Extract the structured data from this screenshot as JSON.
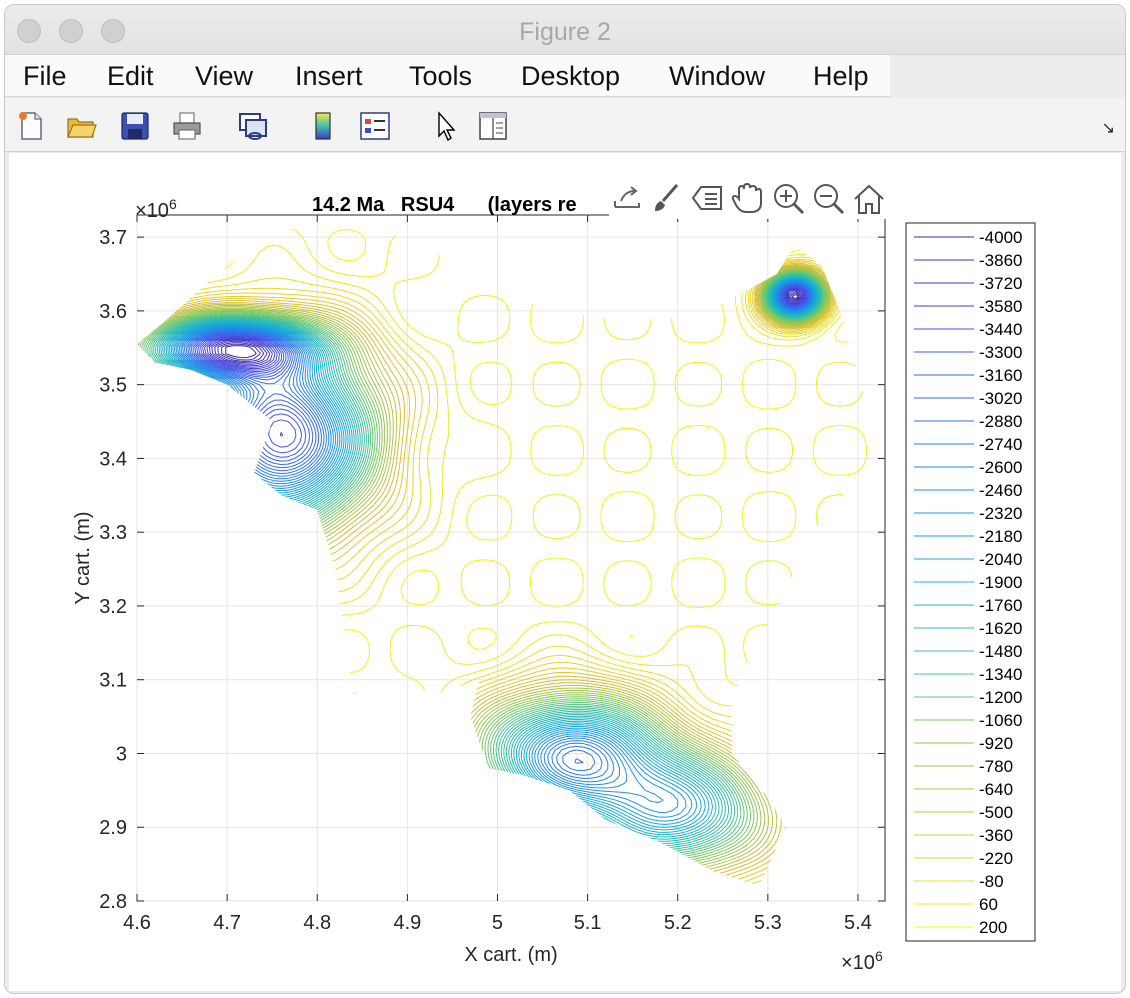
{
  "window": {
    "title": "Figure 2"
  },
  "menu": {
    "items": [
      "File",
      "Edit",
      "View",
      "Insert",
      "Tools",
      "Desktop",
      "Window",
      "Help"
    ]
  },
  "toolbar": {
    "buttons": [
      "new-figure-icon",
      "open-file-icon",
      "save-icon",
      "print-icon",
      "link-plot-icon",
      "colorbar-icon",
      "legend-icon",
      "edit-plot-pointer-icon",
      "property-inspector-icon"
    ]
  },
  "axes_toolbar": {
    "buttons": [
      "export-icon",
      "brush-icon",
      "data-tips-icon",
      "pan-hand-icon",
      "zoom-in-icon",
      "zoom-out-icon",
      "home-icon"
    ]
  },
  "chart_data": {
    "type": "contour",
    "title": "14.2 Ma   RSU4      (layers re",
    "xlabel": "X cart. (m)",
    "ylabel": "Y cart. (m)",
    "x_exponent": "×10",
    "x_exponent_power": "6",
    "y_exponent": "×10",
    "y_exponent_power": "6",
    "xlim": [
      4.6,
      5.43
    ],
    "ylim": [
      2.8,
      3.73
    ],
    "xticks": [
      "4.6",
      "4.7",
      "4.8",
      "4.9",
      "5",
      "5.1",
      "5.2",
      "5.3",
      "5.4"
    ],
    "yticks": [
      "2.8",
      "2.9",
      "3",
      "3.1",
      "3.2",
      "3.3",
      "3.4",
      "3.5",
      "3.6",
      "3.7"
    ],
    "grid": true,
    "legend_position": "right",
    "levels": [
      -4000,
      -3860,
      -3720,
      -3580,
      -3440,
      -3300,
      -3160,
      -3020,
      -2880,
      -2740,
      -2600,
      -2460,
      -2320,
      -2180,
      -2040,
      -1900,
      -1760,
      -1620,
      -1480,
      -1340,
      -1200,
      -1060,
      -920,
      -780,
      -640,
      -500,
      -360,
      -220,
      -80,
      60,
      200
    ],
    "level_labels": [
      "-4000",
      "-3860",
      "-3720",
      "-3580",
      "-3440",
      "-3300",
      "-3160",
      "-3020",
      "-2880",
      "-2740",
      "-2600",
      "-2460",
      "-2320",
      "-2180",
      "-2040",
      "-1900",
      "-1760",
      "-1620",
      "-1480",
      "-1340",
      "-1200",
      "-1060",
      "-920",
      "-780",
      "-640",
      "-500",
      "-360",
      "-220",
      "-80",
      "60",
      "200"
    ],
    "colormap": "parula"
  }
}
